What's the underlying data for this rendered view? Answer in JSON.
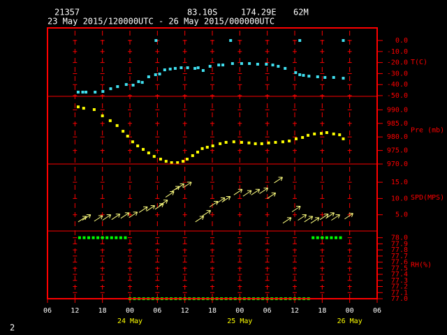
{
  "header": {
    "station": "21357",
    "lat": "83.10S",
    "lon": "174.29E",
    "elev": "62M",
    "period": "23 May 2015/120000UTC - 26 May 2015/000000UTC",
    "page": "2"
  },
  "x_axis": {
    "xlim": [
      0,
      72
    ],
    "xticks": [
      {
        "value": 0,
        "label": "06"
      },
      {
        "value": 6,
        "label": "12"
      },
      {
        "value": 12,
        "label": "18"
      },
      {
        "value": 18,
        "label": "00"
      },
      {
        "value": 24,
        "label": "06"
      },
      {
        "value": 30,
        "label": "12"
      },
      {
        "value": 36,
        "label": "18"
      },
      {
        "value": 42,
        "label": "00"
      },
      {
        "value": 48,
        "label": "06"
      },
      {
        "value": 54,
        "label": "12"
      },
      {
        "value": 60,
        "label": "18"
      },
      {
        "value": 66,
        "label": "00"
      },
      {
        "value": 72,
        "label": "06"
      }
    ],
    "date_labels": [
      {
        "value": 18,
        "label": "24 May"
      },
      {
        "value": 42,
        "label": "25 May"
      },
      {
        "value": 66,
        "label": "26 May"
      }
    ]
  },
  "chart_data": [
    {
      "type": "scatter",
      "label": "T(C)",
      "color": "#40e0f0",
      "ylim": [
        -50.6,
        11.4
      ],
      "yticks": [
        {
          "value": 0,
          "label": "0.0"
        },
        {
          "value": -10,
          "label": "-10.0"
        },
        {
          "value": -20,
          "label": "-20.0"
        },
        {
          "value": -30,
          "label": "-30.0"
        },
        {
          "value": -40,
          "label": "-40.0"
        },
        {
          "value": -50,
          "label": "-50.0"
        }
      ],
      "x": [
        6.7,
        7.7,
        8.4,
        10.4,
        12.1,
        13.8,
        15.3,
        17.2,
        18.7,
        19.9,
        20.7,
        22.1,
        23.6,
        23.7,
        24.5,
        25.6,
        26.8,
        27.9,
        29.2,
        30.6,
        32.2,
        32.9,
        34.0,
        35.5,
        37.4,
        38.3,
        40.0,
        40.4,
        42.4,
        44.1,
        45.9,
        47.8,
        49.2,
        50.4,
        51.9,
        54.2,
        55.1,
        55.1,
        55.9,
        57.1,
        59.0,
        60.6,
        62.5,
        64.6,
        64.6
      ],
      "values": [
        -46.8,
        -46.8,
        -46.8,
        -46.8,
        -46.2,
        -43.7,
        -41.8,
        -39.9,
        -40.5,
        -37.3,
        -38.0,
        -32.9,
        -31.0,
        0.0,
        -30.4,
        -26.6,
        -25.9,
        -25.3,
        -24.7,
        -24.7,
        -25.3,
        -24.7,
        -27.2,
        -23.4,
        -22.2,
        -22.2,
        0.0,
        -20.9,
        -20.9,
        -20.9,
        -21.5,
        -21.5,
        -22.2,
        -23.4,
        -25.3,
        -29.1,
        -31.0,
        0.0,
        -31.6,
        -32.3,
        -32.9,
        -33.5,
        -33.5,
        -34.2,
        0.0
      ]
    },
    {
      "type": "scatter",
      "label": "Pre (mb)",
      "color": "#ffff00",
      "ylim": [
        970,
        995
      ],
      "yticks": [
        {
          "value": 990,
          "label": "990.0"
        },
        {
          "value": 985,
          "label": "985.0"
        },
        {
          "value": 980,
          "label": "980.0"
        },
        {
          "value": 975,
          "label": "975.0"
        },
        {
          "value": 970,
          "label": "970.0"
        }
      ],
      "x": [
        6.7,
        7.9,
        10.2,
        12.0,
        13.7,
        15.2,
        16.5,
        17.5,
        18.6,
        19.7,
        20.9,
        22.1,
        23.3,
        24.7,
        25.9,
        27.1,
        28.4,
        29.6,
        30.5,
        31.7,
        32.8,
        33.8,
        34.9,
        36.1,
        37.7,
        39.0,
        40.7,
        42.4,
        44.0,
        45.4,
        46.8,
        48.3,
        49.8,
        51.4,
        52.8,
        54.3,
        55.7,
        56.9,
        58.3,
        59.8,
        61.0,
        62.5,
        63.8,
        64.6
      ],
      "values": [
        991.1,
        990.6,
        990.1,
        987.8,
        986.0,
        984.2,
        982.1,
        980.3,
        978.2,
        976.7,
        975.4,
        974.1,
        972.8,
        971.8,
        971.0,
        970.5,
        970.5,
        971.0,
        971.8,
        973.1,
        974.4,
        975.7,
        976.2,
        976.7,
        977.5,
        978.0,
        978.2,
        978.0,
        977.8,
        977.5,
        977.5,
        977.8,
        978.0,
        978.2,
        978.5,
        979.3,
        979.8,
        980.6,
        981.1,
        981.3,
        981.6,
        981.1,
        980.8,
        979.3
      ]
    },
    {
      "type": "vector",
      "label": "SPD(MPS)",
      "color": "#ffff80",
      "ylim": [
        0,
        20.6
      ],
      "yticks": [
        {
          "value": 15,
          "label": "15.0"
        },
        {
          "value": 10,
          "label": "10.0"
        },
        {
          "value": 5,
          "label": "5.0"
        }
      ],
      "x": [
        6.7,
        7.6,
        10.2,
        12.0,
        14.0,
        16.0,
        17.8,
        20.0,
        21.6,
        23.5,
        24.4,
        25.8,
        27.0,
        28.0,
        29.6,
        32.3,
        33.8,
        35.4,
        36.9,
        38.1,
        40.7,
        42.7,
        44.5,
        46.3,
        48.0,
        49.5,
        51.4,
        53.4,
        54.7,
        56.1,
        57.5,
        59.5,
        60.8,
        62.0,
        64.9
      ],
      "values": [
        2.8,
        3.3,
        3.0,
        3.3,
        3.5,
        3.9,
        4.1,
        5.7,
        6.1,
        6.7,
        7.8,
        10.4,
        12.0,
        12.8,
        13.3,
        2.8,
        4.6,
        7.4,
        8.5,
        8.9,
        11.1,
        10.7,
        11.1,
        11.5,
        10.0,
        14.8,
        2.4,
        5.9,
        3.3,
        2.8,
        2.4,
        3.5,
        3.9,
        3.3,
        3.7
      ]
    },
    {
      "type": "scatter",
      "label": "RH(%)",
      "color": "#00ff00",
      "ylim": [
        77.0,
        78.11
      ],
      "yticks": [
        {
          "value": 78.0,
          "label": "78.0"
        },
        {
          "value": 77.9,
          "label": "77.9"
        },
        {
          "value": 77.8,
          "label": "77.8"
        },
        {
          "value": 77.7,
          "label": "77.7"
        },
        {
          "value": 77.6,
          "label": "77.6"
        },
        {
          "value": 77.5,
          "label": "77.5"
        },
        {
          "value": 77.4,
          "label": "77.4"
        },
        {
          "value": 77.3,
          "label": "77.3"
        },
        {
          "value": 77.2,
          "label": "77.2"
        },
        {
          "value": 77.1,
          "label": "77.1"
        },
        {
          "value": 77.0,
          "label": "77.0"
        }
      ],
      "x": [
        7,
        8,
        9,
        10,
        11,
        12,
        13,
        14,
        15,
        16,
        17,
        18,
        19,
        20,
        21,
        22,
        23,
        24,
        25,
        26,
        27,
        28,
        29,
        30,
        31,
        32,
        33,
        34,
        35,
        36,
        37,
        38,
        39,
        40,
        41,
        42,
        43,
        44,
        45,
        46,
        47,
        48,
        49,
        50,
        51,
        52,
        53,
        54,
        55,
        56,
        57,
        58,
        59,
        60,
        61,
        62,
        63,
        64
      ],
      "values": [
        78.0,
        78.0,
        78.0,
        78.0,
        78.0,
        78.0,
        78.0,
        78.0,
        78.0,
        78.0,
        78.0,
        77.0,
        77.0,
        77.0,
        77.0,
        77.0,
        77.0,
        77.0,
        77.0,
        77.0,
        77.0,
        77.0,
        77.0,
        77.0,
        77.0,
        77.0,
        77.0,
        77.0,
        77.0,
        77.0,
        77.0,
        77.0,
        77.0,
        77.0,
        77.0,
        77.0,
        77.0,
        77.0,
        77.0,
        77.0,
        77.0,
        77.0,
        77.0,
        77.0,
        77.0,
        77.0,
        77.0,
        77.0,
        77.0,
        77.0,
        77.0,
        78.0,
        78.0,
        78.0,
        78.0,
        78.0,
        78.0,
        78.0
      ]
    }
  ]
}
